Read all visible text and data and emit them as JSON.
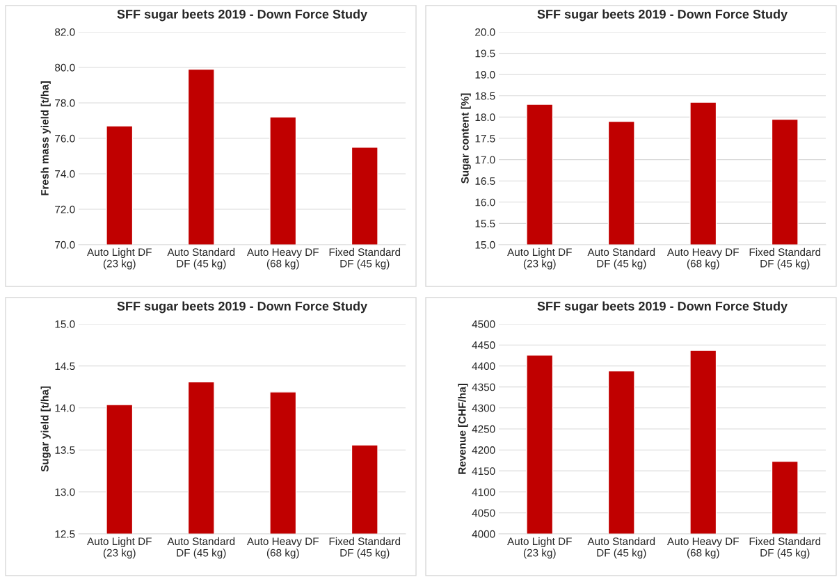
{
  "chart_data": [
    {
      "type": "bar",
      "title": "SFF sugar beets 2019 - Down Force Study",
      "ylabel": "Fresh mass yield [t/ha]",
      "categories": [
        "Auto Light DF\n(23 kg)",
        "Auto Standard\nDF (45 kg)",
        "Auto Heavy DF\n(68 kg)",
        "Fixed Standard\nDF (45 kg)"
      ],
      "values": [
        76.7,
        79.9,
        77.2,
        75.5
      ],
      "color": "#c00000",
      "ylim": [
        70,
        82
      ],
      "yticks": [
        {
          "value": 70,
          "label": "70.0"
        },
        {
          "value": 72,
          "label": "72.0"
        },
        {
          "value": 74,
          "label": "74.0"
        },
        {
          "value": 76,
          "label": "76.0"
        },
        {
          "value": 78,
          "label": "78.0"
        },
        {
          "value": 80,
          "label": "80.0"
        },
        {
          "value": 82,
          "label": "82.0"
        }
      ],
      "grid": "y"
    },
    {
      "type": "bar",
      "title": "SFF sugar beets 2019 - Down Force Study",
      "ylabel": "Sugar content [%]",
      "categories": [
        "Auto Light DF\n(23 kg)",
        "Auto Standard\nDF (45 kg)",
        "Auto Heavy DF\n(68 kg)",
        "Fixed Standard\nDF (45 kg)"
      ],
      "values": [
        18.3,
        17.9,
        18.35,
        17.95
      ],
      "color": "#c00000",
      "ylim": [
        15,
        20
      ],
      "yticks": [
        {
          "value": 15,
          "label": "15.0"
        },
        15.5,
        {
          "value": 16,
          "label": "16.0"
        },
        16.5,
        {
          "value": 17,
          "label": "17.0"
        },
        17.5,
        {
          "value": 18,
          "label": "18.0"
        },
        18.5,
        {
          "value": 19,
          "label": "19.0"
        },
        19.5,
        {
          "value": 20,
          "label": "20.0"
        }
      ],
      "grid": "y"
    },
    {
      "type": "bar",
      "title": "SFF sugar beets 2019 - Down Force Study",
      "ylabel": "Sugar yield [t/ha]",
      "categories": [
        "Auto Light DF\n(23 kg)",
        "Auto Standard\nDF (45 kg)",
        "Auto Heavy DF\n(68 kg)",
        "Fixed Standard\nDF (45 kg)"
      ],
      "values": [
        14.04,
        14.31,
        14.19,
        13.56
      ],
      "color": "#c00000",
      "ylim": [
        12.5,
        15
      ],
      "yticks": [
        12.5,
        {
          "value": 13,
          "label": "13.0"
        },
        13.5,
        {
          "value": 14,
          "label": "14.0"
        },
        14.5,
        {
          "value": 15,
          "label": "15.0"
        }
      ],
      "grid": "y"
    },
    {
      "type": "bar",
      "title": "SFF sugar beets 2019 - Down Force Study",
      "ylabel": "Revenue [CHF/ha]",
      "categories": [
        "Auto Light DF\n(23 kg)",
        "Auto Standard\nDF (45 kg)",
        "Auto Heavy DF\n(68 kg)",
        "Fixed Standard\nDF (45 kg)"
      ],
      "values": [
        4426,
        4388,
        4437,
        4173
      ],
      "color": "#c00000",
      "ylim": [
        4000,
        4500
      ],
      "yticks": [
        4000,
        4050,
        4100,
        4150,
        4200,
        4250,
        4300,
        4350,
        4400,
        4450,
        4500
      ],
      "grid": "y"
    }
  ]
}
